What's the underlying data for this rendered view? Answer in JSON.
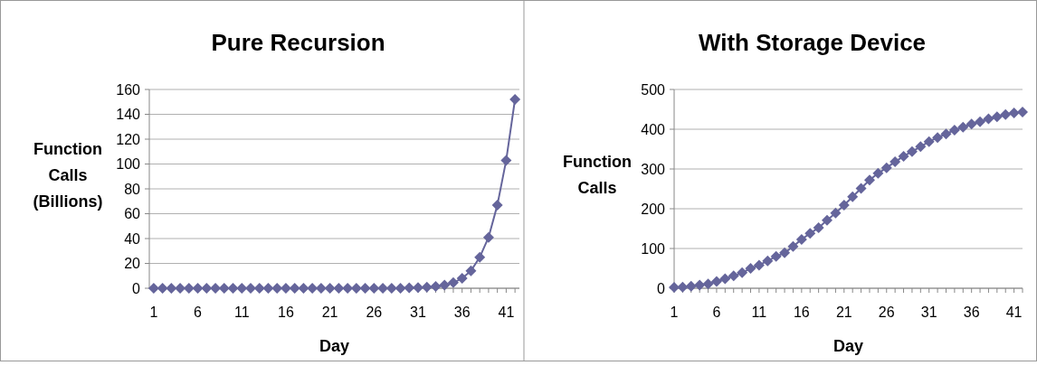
{
  "chart_data": [
    {
      "type": "line",
      "title": "Pure Recursion",
      "xlabel": "Day",
      "ylabel": "Function Calls (Billions)",
      "x": [
        1,
        2,
        3,
        4,
        5,
        6,
        7,
        8,
        9,
        10,
        11,
        12,
        13,
        14,
        15,
        16,
        17,
        18,
        19,
        20,
        21,
        22,
        23,
        24,
        25,
        26,
        27,
        28,
        29,
        30,
        31,
        32,
        33,
        34,
        35,
        36,
        37,
        38,
        39,
        40,
        41,
        42
      ],
      "xlim": [
        0.5,
        42.5
      ],
      "xticks": [
        1,
        6,
        11,
        16,
        21,
        26,
        31,
        36,
        41
      ],
      "ylim": [
        0,
        160
      ],
      "yticks": [
        0,
        20,
        40,
        60,
        80,
        100,
        120,
        140,
        160
      ],
      "grid": "y",
      "marker": "diamond",
      "line_style": "solid",
      "series": [
        {
          "color": "#65659b",
          "values": [
            0,
            0,
            0,
            0,
            0,
            0,
            0,
            0,
            0,
            0,
            0,
            0,
            0,
            0,
            0,
            0,
            0,
            0,
            0,
            0,
            0,
            0,
            0,
            0,
            0,
            0,
            0,
            0,
            0,
            0.3,
            0.5,
            0.9,
            1.5,
            2.5,
            4.5,
            8,
            14,
            25,
            41,
            67,
            103,
            152
          ]
        }
      ]
    },
    {
      "type": "line",
      "title": "With Storage Device",
      "xlabel": "Day",
      "ylabel": "Function Calls",
      "x": [
        1,
        2,
        3,
        4,
        5,
        6,
        7,
        8,
        9,
        10,
        11,
        12,
        13,
        14,
        15,
        16,
        17,
        18,
        19,
        20,
        21,
        22,
        23,
        24,
        25,
        26,
        27,
        28,
        29,
        30,
        31,
        32,
        33,
        34,
        35,
        36,
        37,
        38,
        39,
        40,
        41,
        42
      ],
      "xlim": [
        1,
        42
      ],
      "xticks": [
        1,
        6,
        11,
        16,
        21,
        26,
        31,
        36,
        41
      ],
      "ylim": [
        0,
        500
      ],
      "yticks": [
        0,
        100,
        200,
        300,
        400,
        500
      ],
      "grid": "y",
      "marker": "diamond",
      "line_style": "solid",
      "series": [
        {
          "color": "#65659b",
          "values": [
            2,
            3,
            5,
            8,
            11,
            17,
            24,
            31,
            39,
            50,
            58,
            69,
            80,
            89,
            105,
            123,
            138,
            152,
            171,
            189,
            209,
            230,
            251,
            272,
            289,
            303,
            318,
            332,
            344,
            356,
            369,
            379,
            388,
            398,
            405,
            413,
            419,
            426,
            431,
            437,
            441,
            443
          ]
        }
      ]
    }
  ]
}
